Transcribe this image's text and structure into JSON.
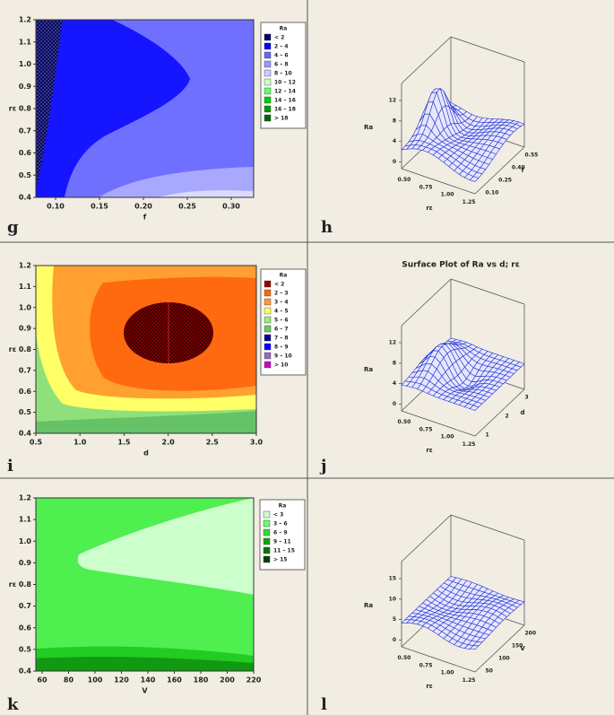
{
  "panels": [
    {
      "letter": "g",
      "kind": "contour",
      "x_label": "f",
      "y_label": "rε",
      "x_ticks": [
        "0.10",
        "0.15",
        "0.20",
        "0.25",
        "0.30"
      ],
      "y_ticks": [
        "0.4",
        "0.5",
        "0.6",
        "0.7",
        "0.8",
        "0.9",
        "1.0",
        "1.1",
        "1.2"
      ],
      "legend": {
        "title": "Ra",
        "entries": [
          {
            "label": "<   2",
            "color": "#000066"
          },
          {
            "label": "2 –  4",
            "color": "#0000ff"
          },
          {
            "label": "4 –  6",
            "color": "#6666ff"
          },
          {
            "label": "6 –  8",
            "color": "#9999ff"
          },
          {
            "label": "8 – 10",
            "color": "#ccccff"
          },
          {
            "label": "10 – 12",
            "color": "#ccffcc"
          },
          {
            "label": "12 – 14",
            "color": "#66ff66"
          },
          {
            "label": "14 – 16",
            "color": "#00cc00"
          },
          {
            "label": "16 – 18",
            "color": "#009900"
          },
          {
            "label": ">  18",
            "color": "#006600"
          }
        ]
      }
    },
    {
      "letter": "h",
      "kind": "surface",
      "z_label": "Ra",
      "x_label": "rε",
      "y_label": "f",
      "z_ticks": [
        "0",
        "4",
        "8",
        "12"
      ],
      "x_ticks": [
        "0.50",
        "0.75",
        "1.00",
        "1.25"
      ],
      "y_ticks": [
        "0.10",
        "0.25",
        "0.40",
        "0.55"
      ]
    },
    {
      "letter": "i",
      "kind": "contour",
      "x_label": "d",
      "y_label": "rε",
      "x_ticks": [
        "0.5",
        "1.0",
        "1.5",
        "2.0",
        "2.5",
        "3.0"
      ],
      "y_ticks": [
        "0.4",
        "0.5",
        "0.6",
        "0.7",
        "0.8",
        "0.9",
        "1.0",
        "1.1",
        "1.2"
      ],
      "legend": {
        "title": "Ra",
        "entries": [
          {
            "label": "<   2",
            "color": "#990000"
          },
          {
            "label": "2 –  3",
            "color": "#ff6600"
          },
          {
            "label": "3 –  4",
            "color": "#ff9933"
          },
          {
            "label": "4 –  5",
            "color": "#ffff66"
          },
          {
            "label": "5 –  6",
            "color": "#99ee77"
          },
          {
            "label": "6 –  7",
            "color": "#66cc66"
          },
          {
            "label": "7 –  8",
            "color": "#000099"
          },
          {
            "label": "8 –  9",
            "color": "#0000ff"
          },
          {
            "label": "9 – 10",
            "color": "#9966cc"
          },
          {
            "label": ">  10",
            "color": "#cc00cc"
          }
        ]
      }
    },
    {
      "letter": "j",
      "kind": "surface",
      "title": "Surface Plot of Ra vs d; rε",
      "z_label": "Ra",
      "x_label": "rε",
      "y_label": "d",
      "z_ticks": [
        "0",
        "4",
        "8",
        "12"
      ],
      "x_ticks": [
        "0.50",
        "0.75",
        "1.00",
        "1.25"
      ],
      "y_ticks": [
        "1",
        "2",
        "3"
      ]
    },
    {
      "letter": "k",
      "kind": "contour",
      "x_label": "V",
      "y_label": "rε",
      "x_ticks": [
        "60",
        "80",
        "100",
        "120",
        "140",
        "160",
        "180",
        "200",
        "220"
      ],
      "y_ticks": [
        "0.4",
        "0.5",
        "0.6",
        "0.7",
        "0.8",
        "0.9",
        "1.0",
        "1.1",
        "1.2"
      ],
      "legend": {
        "title": "Ra",
        "entries": [
          {
            "label": "<   3",
            "color": "#ccffcc"
          },
          {
            "label": "3 –  6",
            "color": "#66ff66"
          },
          {
            "label": "6 –  9",
            "color": "#33dd33"
          },
          {
            "label": "9 – 11",
            "color": "#00aa00"
          },
          {
            "label": "11 – 15",
            "color": "#007700"
          },
          {
            "label": ">  15",
            "color": "#004400"
          }
        ]
      }
    },
    {
      "letter": "l",
      "kind": "surface",
      "z_label": "Ra",
      "x_label": "rε",
      "y_label": "V",
      "z_ticks": [
        "0",
        "5",
        "10",
        "15"
      ],
      "x_ticks": [
        "0.50",
        "0.75",
        "1.00",
        "1.25"
      ],
      "y_ticks": [
        "50",
        "100",
        "150",
        "200"
      ]
    }
  ]
}
